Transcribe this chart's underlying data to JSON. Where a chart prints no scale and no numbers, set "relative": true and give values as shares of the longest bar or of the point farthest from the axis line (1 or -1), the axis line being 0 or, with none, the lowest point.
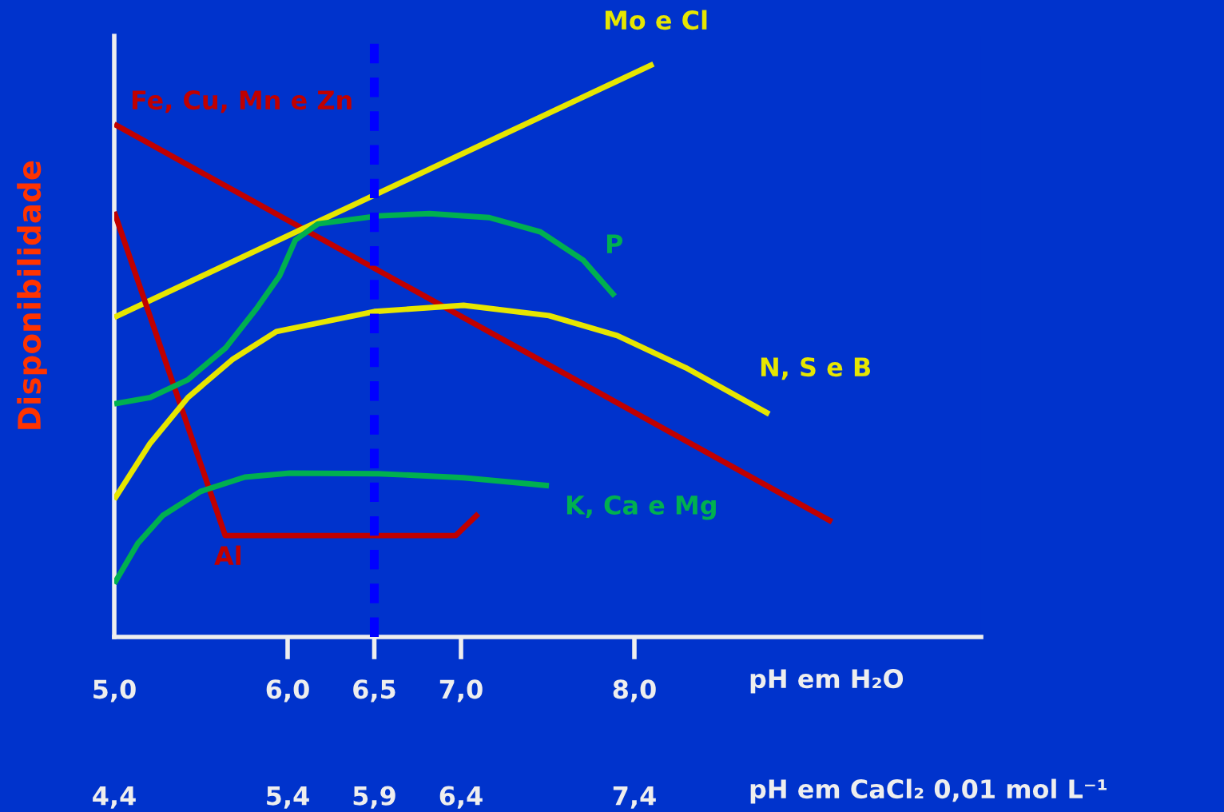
{
  "chart_data": {
    "type": "line",
    "relative": true,
    "ylabel": "Disponibilidade",
    "xlabel": "pH em H₂O",
    "x2label": "pH em CaCl₂ 0,01 mol L⁻¹",
    "xlim": [
      5.0,
      10.0
    ],
    "xticks": [
      {
        "value": 5.0,
        "label": "5,0"
      },
      {
        "value": 6.0,
        "label": "6,0"
      },
      {
        "value": 6.5,
        "label": "6,5"
      },
      {
        "value": 7.0,
        "label": "7,0"
      },
      {
        "value": 8.0,
        "label": "8,0"
      }
    ],
    "x2lim": [
      4.4,
      9.4
    ],
    "x2ticks": [
      {
        "value": 4.4,
        "label": "4,4"
      },
      {
        "value": 5.4,
        "label": "5,4"
      },
      {
        "value": 5.9,
        "label": "5,9"
      },
      {
        "value": 6.4,
        "label": "6,4"
      },
      {
        "value": 7.4,
        "label": "7,4"
      }
    ],
    "grid": false,
    "legend": false,
    "marker": "none",
    "line_style": "solid",
    "series": [
      {
        "name": "Fe, Cu, Mn e Zn",
        "color": "#c00000",
        "x": [
          5.0,
          9.14
        ],
        "values": [
          0.895,
          0.201
        ]
      },
      {
        "name": "Mo e Cl",
        "color": "#e6e600",
        "x": [
          5.0,
          8.11
        ],
        "values": [
          0.558,
          1.0
        ]
      },
      {
        "name": "Al",
        "color": "#c00000",
        "x": [
          5.0,
          5.64,
          6.97,
          7.1
        ],
        "values": [
          0.742,
          0.177,
          0.177,
          0.215
        ]
      },
      {
        "name": "P",
        "color": "#00b050",
        "x": [
          5.0,
          5.207,
          5.425,
          5.644,
          5.825,
          5.953,
          6.045,
          6.175,
          6.525,
          6.819,
          7.163,
          7.458,
          7.704,
          7.887
        ],
        "values": [
          0.407,
          0.418,
          0.449,
          0.505,
          0.575,
          0.63,
          0.693,
          0.721,
          0.735,
          0.739,
          0.732,
          0.707,
          0.658,
          0.595
        ]
      },
      {
        "name": "N, S e B",
        "color": "#e6e600",
        "x": [
          5.0,
          5.207,
          5.425,
          5.68,
          5.935,
          6.5,
          7.015,
          7.507,
          7.901,
          8.296,
          8.778
        ],
        "values": [
          0.24,
          0.338,
          0.418,
          0.484,
          0.533,
          0.568,
          0.579,
          0.561,
          0.526,
          0.47,
          0.389
        ]
      },
      {
        "name": "K, Ca e Mg",
        "color": "#00b050",
        "x": [
          5.0,
          5.135,
          5.28,
          5.498,
          5.753,
          6.013,
          6.525,
          7.015,
          7.507
        ],
        "values": [
          0.093,
          0.163,
          0.212,
          0.254,
          0.279,
          0.286,
          0.285,
          0.278,
          0.264
        ]
      }
    ],
    "ref_lines": [
      {
        "axis": "x",
        "value": 6.5,
        "color": "#0000ff",
        "line_style": "dashed"
      }
    ]
  }
}
